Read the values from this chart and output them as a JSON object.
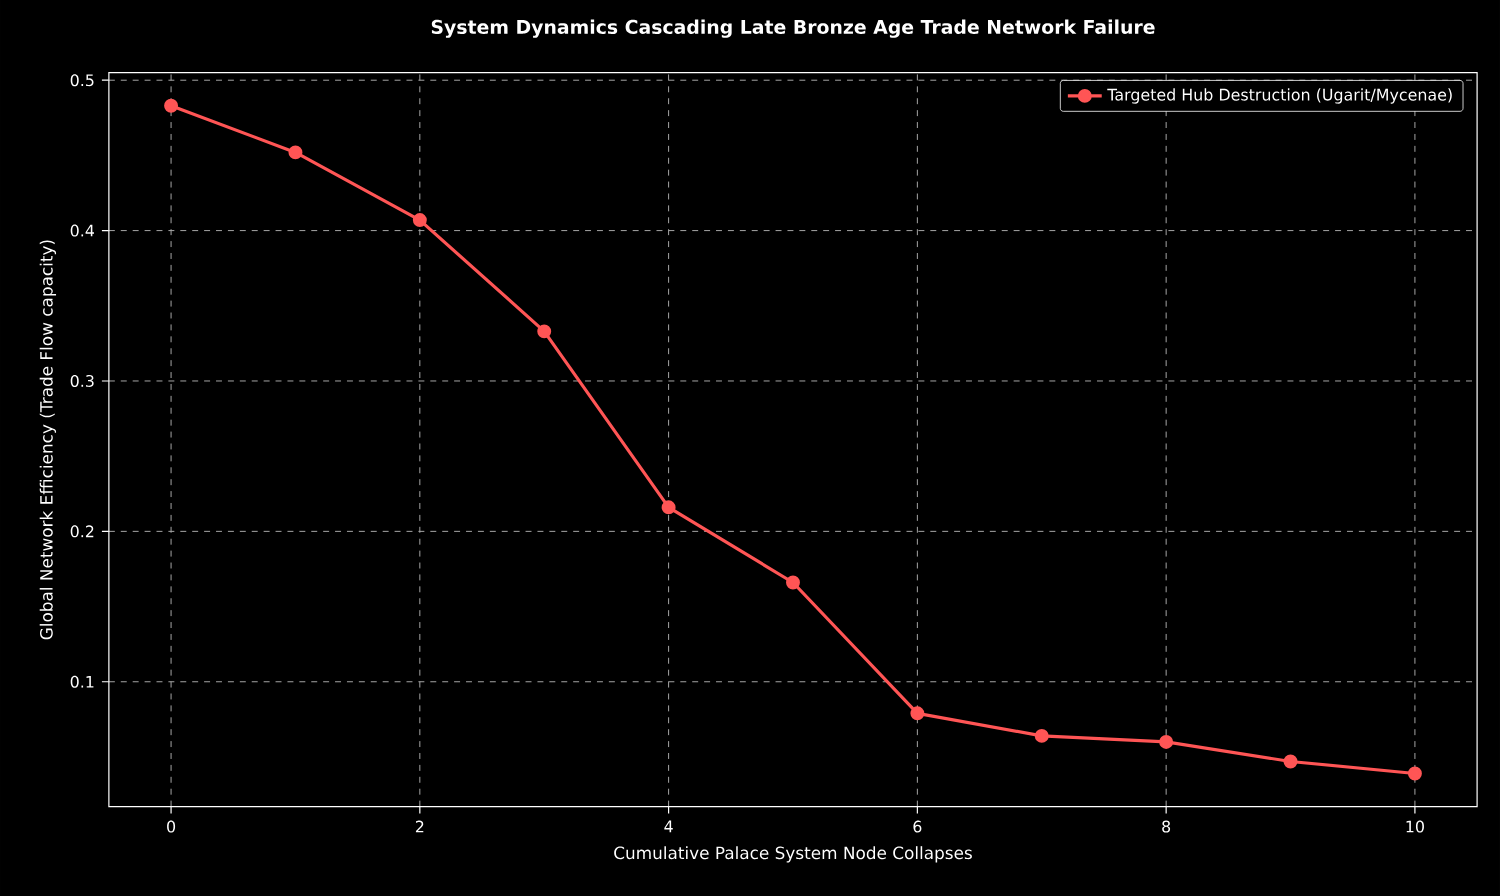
{
  "chart_data": {
    "type": "line",
    "title": "System Dynamics Cascading Late Bronze Age Trade Network Failure",
    "xlabel": "Cumulative Palace System Node Collapses",
    "ylabel": "Global Network Efficiency (Trade Flow capacity)",
    "x": [
      0,
      1,
      2,
      3,
      4,
      5,
      6,
      7,
      8,
      9,
      10
    ],
    "series": [
      {
        "name": "Targeted Hub Destruction (Ugarit/Mycenae)",
        "color": "#ff5555",
        "values": [
          0.483,
          0.452,
          0.407,
          0.333,
          0.216,
          0.166,
          0.079,
          0.064,
          0.06,
          0.047,
          0.039
        ]
      }
    ],
    "xlim": [
      -0.5,
      10.5
    ],
    "ylim": [
      0.017,
      0.505
    ],
    "xticks": [
      0,
      2,
      4,
      6,
      8,
      10
    ],
    "yticks": [
      0.1,
      0.2,
      0.3,
      0.4,
      0.5
    ],
    "grid": true,
    "legend": "top right",
    "marker": "circle",
    "line_style": "solid"
  }
}
